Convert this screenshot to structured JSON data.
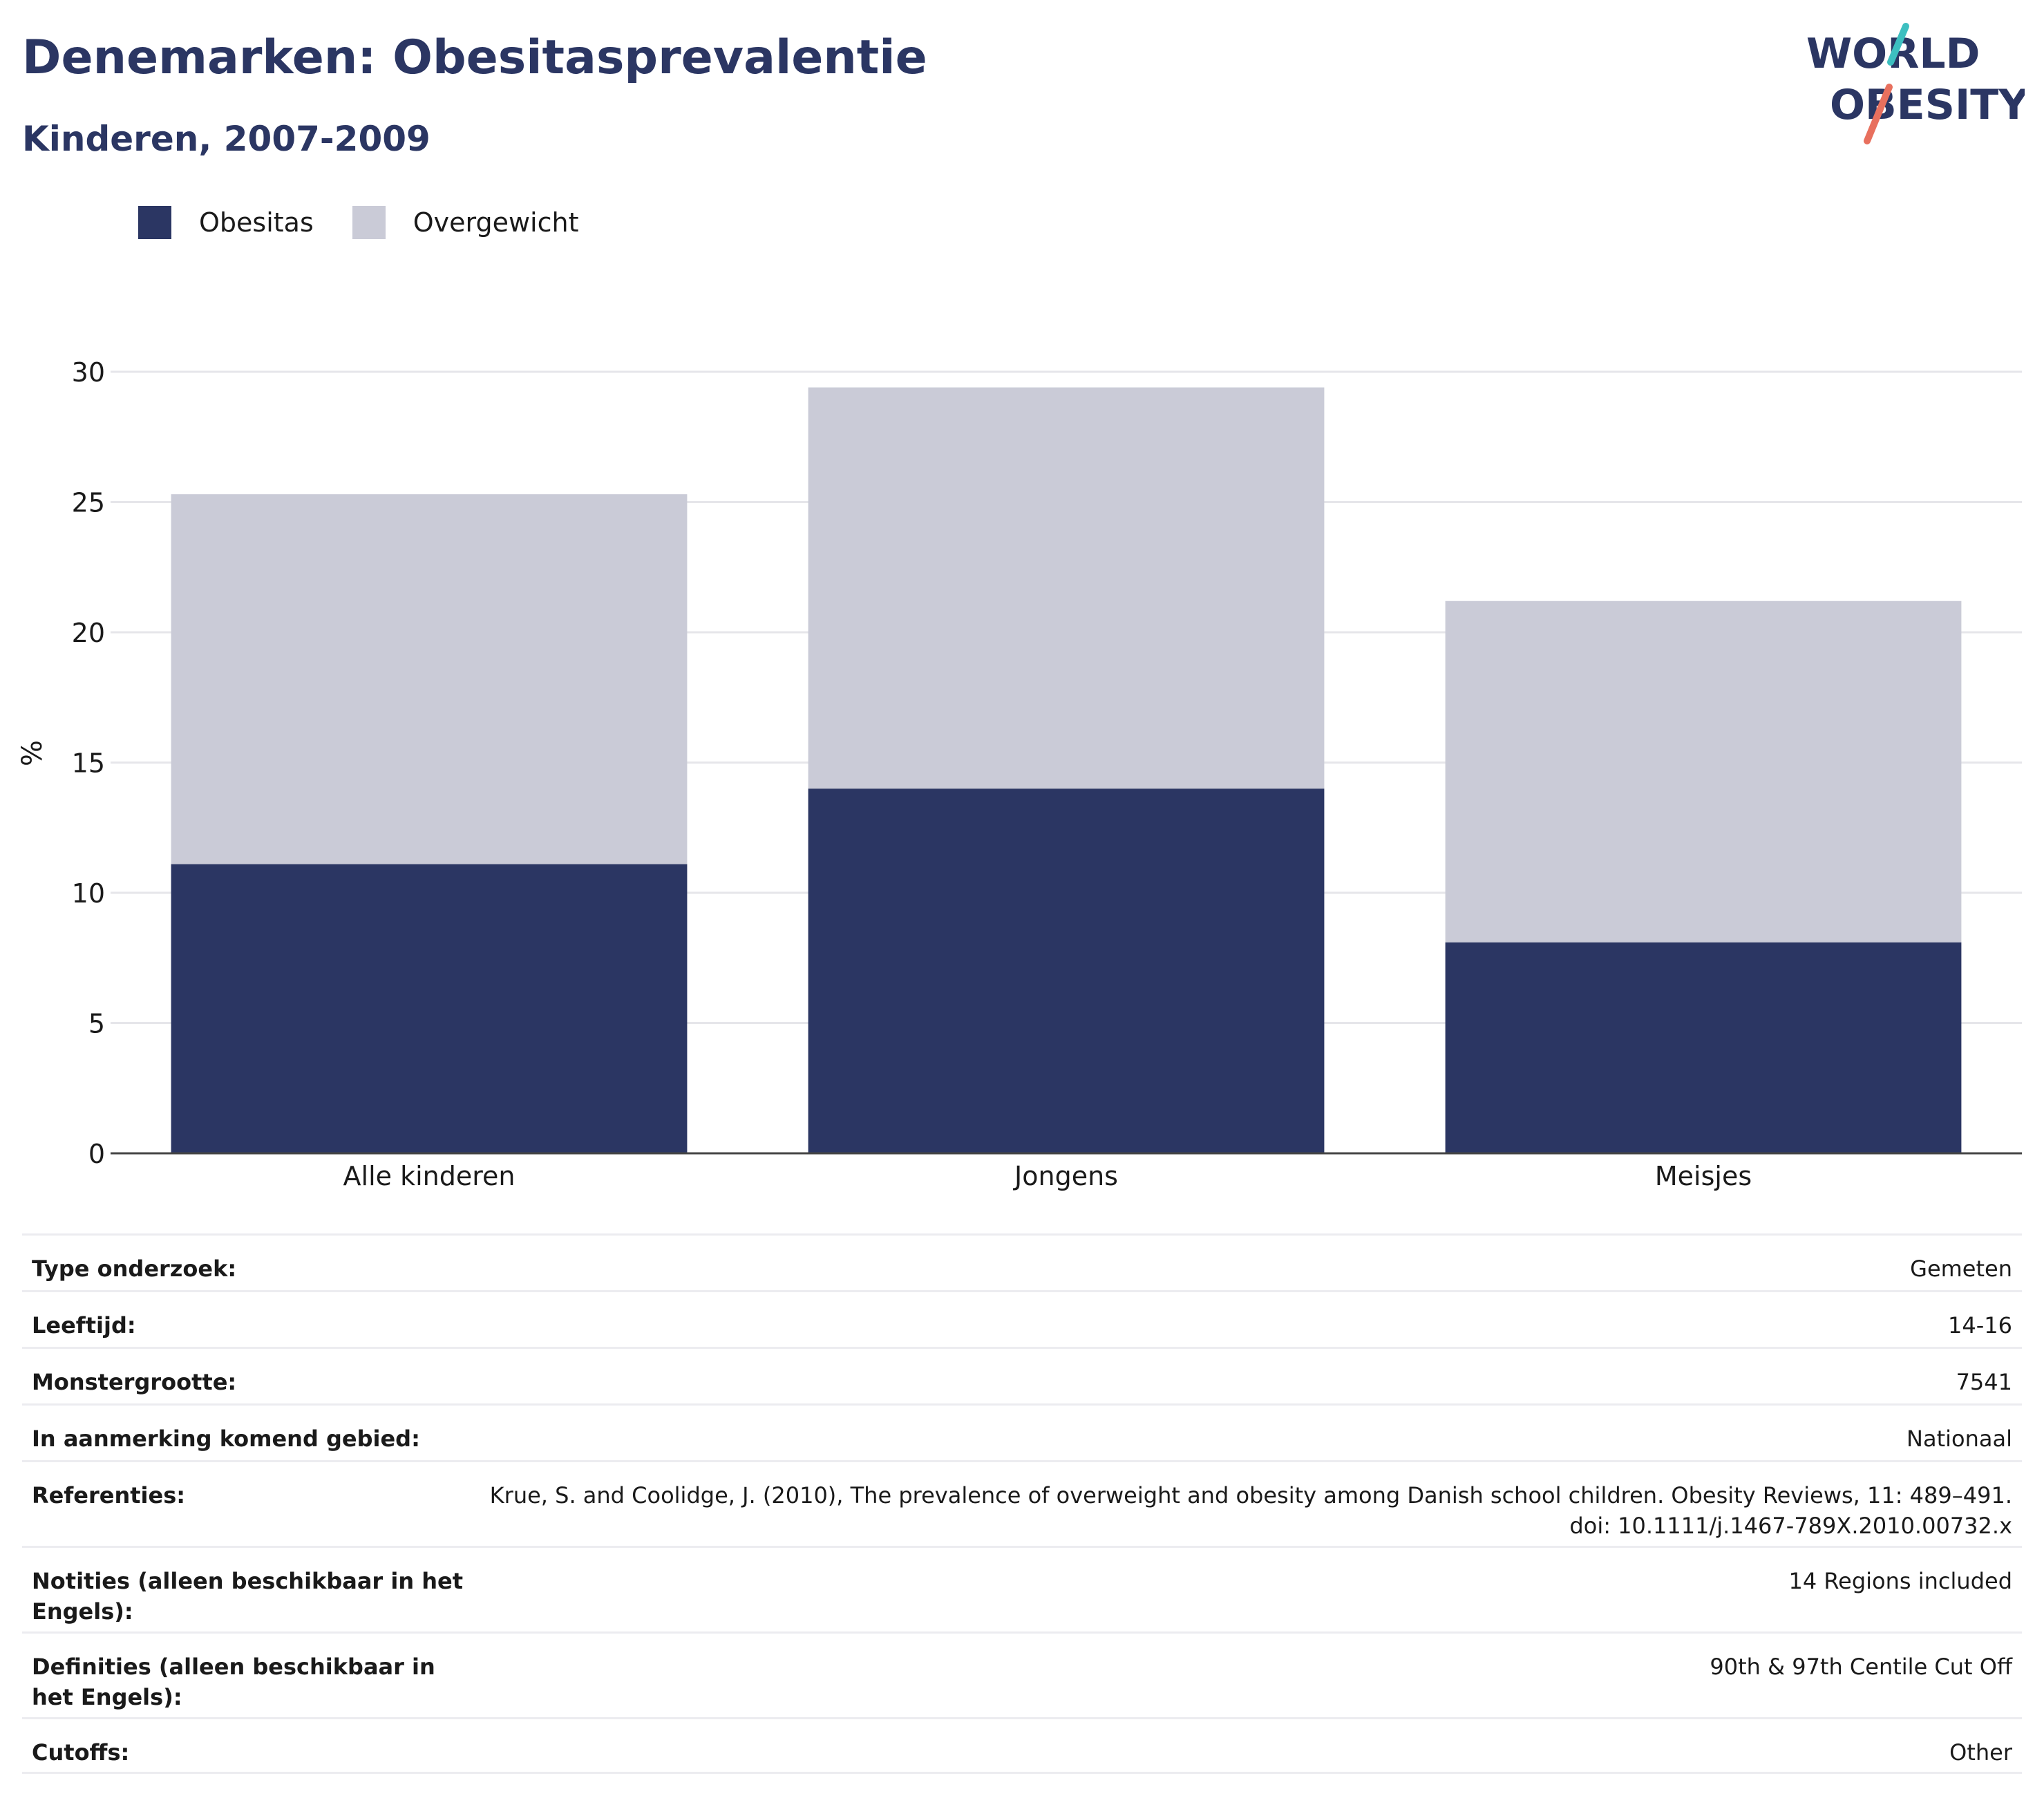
{
  "header": {
    "title": "Denemarken: Obesitasprevalentie",
    "subtitle": "Kinderen, 2007-2009"
  },
  "logo": {
    "line1": "WORLD",
    "line2": "OBESITY"
  },
  "colors": {
    "obesitas": "#2b3663",
    "overgewicht": "#cacbd7",
    "accent_teal": "#3dbfc0",
    "accent_coral": "#e8705e"
  },
  "chart_data": {
    "type": "bar",
    "stacked": true,
    "categories": [
      "Alle kinderen",
      "Jongens",
      "Meisjes"
    ],
    "series": [
      {
        "name": "Obesitas",
        "values": [
          11.1,
          14.0,
          8.1
        ]
      },
      {
        "name": "Overgewicht",
        "values": [
          14.2,
          15.4,
          13.1
        ]
      }
    ],
    "ylabel": "%",
    "ylim": [
      0,
      30
    ],
    "yticks": [
      0,
      5,
      10,
      15,
      20,
      25,
      30
    ],
    "grid": true,
    "legend": "top-left"
  },
  "meta": [
    {
      "label": "Type onderzoek:",
      "value": "Gemeten"
    },
    {
      "label": "Leeftijd:",
      "value": "14-16"
    },
    {
      "label": "Monstergrootte:",
      "value": "7541"
    },
    {
      "label": "In aanmerking komend gebied:",
      "value": "Nationaal"
    },
    {
      "label": "Referenties:",
      "value": "Krue, S. and Coolidge, J. (2010), The prevalence of overweight and obesity among Danish school children. Obesity Reviews, 11: 489–491. doi: 10.1111/j.1467-789X.2010.00732.x"
    },
    {
      "label": "Notities (alleen beschikbaar in het Engels):",
      "value": "14 Regions included"
    },
    {
      "label": "Definities (alleen beschikbaar in het Engels):",
      "value": "90th & 97th Centile Cut Off"
    },
    {
      "label": "Cutoffs:",
      "value": "Other"
    }
  ]
}
